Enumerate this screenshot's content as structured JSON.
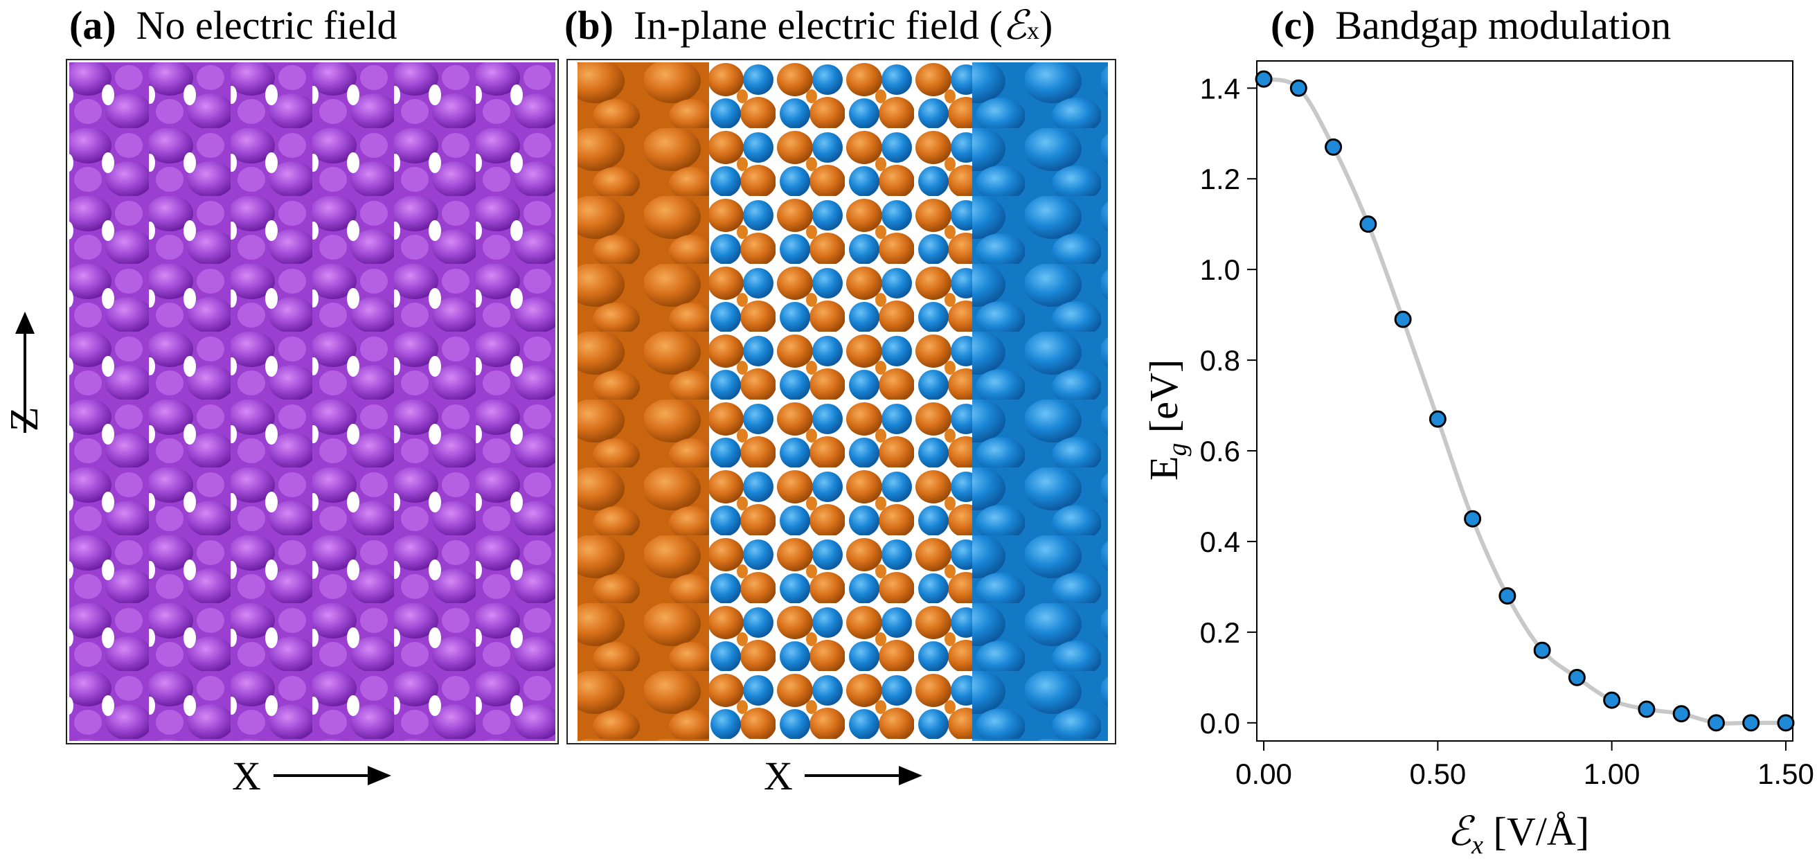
{
  "panels": {
    "a": {
      "letter": "(a)",
      "title": "No electric field",
      "color": "#9a3fd0"
    },
    "b": {
      "letter": "(b)",
      "title": "In-plane electric field (",
      "title_symbol": "ℰ",
      "title_sub": "x",
      "title_end": ")",
      "color_orange": "#d9711a",
      "color_blue": "#1a86d6"
    },
    "c": {
      "letter": "(c)",
      "title": "Bandgap modulation"
    }
  },
  "axes_labels": {
    "z_arrow": "Z",
    "x_arrow_a": "X",
    "x_arrow_b": "X"
  },
  "chart_data": {
    "type": "scatter",
    "title": "Bandgap modulation",
    "xlabel": "ℰx [V/Å]",
    "ylabel": "Eg [eV]",
    "xlim": [
      -0.02,
      1.52
    ],
    "ylim": [
      -0.04,
      1.46
    ],
    "xticks": [
      "0.00",
      "0.50",
      "1.00",
      "1.50"
    ],
    "xtick_values": [
      0,
      0.5,
      1.0,
      1.5
    ],
    "yticks": [
      "0.0",
      "0.2",
      "0.4",
      "0.6",
      "0.8",
      "1.0",
      "1.2",
      "1.4"
    ],
    "ytick_values": [
      0,
      0.2,
      0.4,
      0.6,
      0.8,
      1.0,
      1.2,
      1.4
    ],
    "x": [
      0.0,
      0.1,
      0.2,
      0.3,
      0.4,
      0.5,
      0.6,
      0.7,
      0.8,
      0.9,
      1.0,
      1.1,
      1.2,
      1.3,
      1.4,
      1.5
    ],
    "y": [
      1.42,
      1.4,
      1.27,
      1.1,
      0.89,
      0.67,
      0.45,
      0.28,
      0.16,
      0.1,
      0.05,
      0.03,
      0.02,
      0.0,
      0.0,
      0.0
    ],
    "marker_color": "#1f8ad8",
    "curve_color": "#c8c8c8",
    "grid": false
  }
}
